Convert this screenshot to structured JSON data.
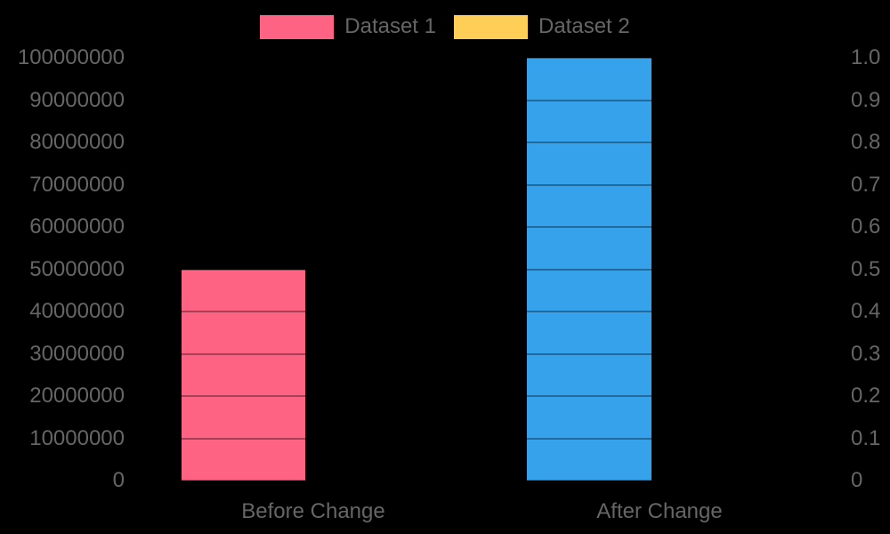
{
  "background_color": "#000000",
  "text_color": "#666666",
  "grid_color": "rgba(0,0,0,0.35)",
  "legend": {
    "items": [
      {
        "label": "Dataset 1",
        "color": "#FF6384"
      },
      {
        "label": "Dataset 2",
        "color": "#FFCE56"
      }
    ]
  },
  "chart_data": {
    "type": "bar",
    "title": "",
    "xlabel": "",
    "ylabel": "",
    "categories": [
      "Before Change",
      "After Change"
    ],
    "values": [
      50000000,
      100000000
    ],
    "bar_colors": [
      "#FF6384",
      "#36A2EB"
    ],
    "grid": true,
    "legend_position": "top",
    "left_axis": {
      "min": 0,
      "max": 100000000,
      "tick_labels": [
        "0",
        "10000000",
        "20000000",
        "30000000",
        "40000000",
        "50000000",
        "60000000",
        "70000000",
        "80000000",
        "90000000",
        "100000000"
      ]
    },
    "right_axis": {
      "min": 0,
      "max": 1.0,
      "tick_labels": [
        "0",
        "0.1",
        "0.2",
        "0.3",
        "0.4",
        "0.5",
        "0.6",
        "0.7",
        "0.8",
        "0.9",
        "1.0"
      ]
    }
  }
}
